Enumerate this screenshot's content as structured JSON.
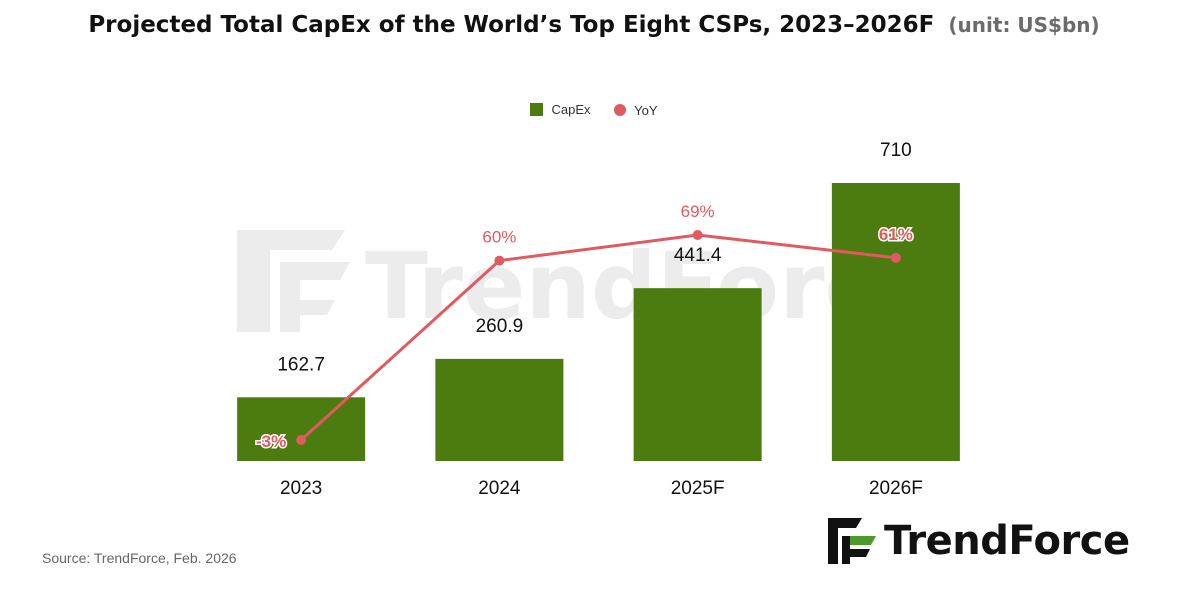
{
  "title": "Projected Total CapEx of the World’s Top Eight CSPs, 2023–2026F",
  "unit": "(unit: US$bn)",
  "source": "Source: TrendForce, Feb. 2026",
  "logo_text": "TrendForce",
  "watermark_text": "TrendForce",
  "colors": {
    "bar": "#4c7b10",
    "line": "#e05a5f",
    "watermark": "#ececec"
  },
  "chart_data": {
    "type": "bar",
    "categories": [
      "2023",
      "2024",
      "2025F",
      "2026F"
    ],
    "series": [
      {
        "name": "CapEx",
        "type": "bar",
        "values": [
          162.7,
          260.9,
          441.4,
          710
        ],
        "labels": [
          "162.7",
          "260.9",
          "441.4",
          "710"
        ]
      },
      {
        "name": "YoY",
        "type": "line",
        "values": [
          -3,
          60,
          69,
          61
        ],
        "labels": [
          "-3%",
          "60%",
          "69%",
          "61%"
        ]
      }
    ],
    "legend": "top-center",
    "grid": false
  }
}
